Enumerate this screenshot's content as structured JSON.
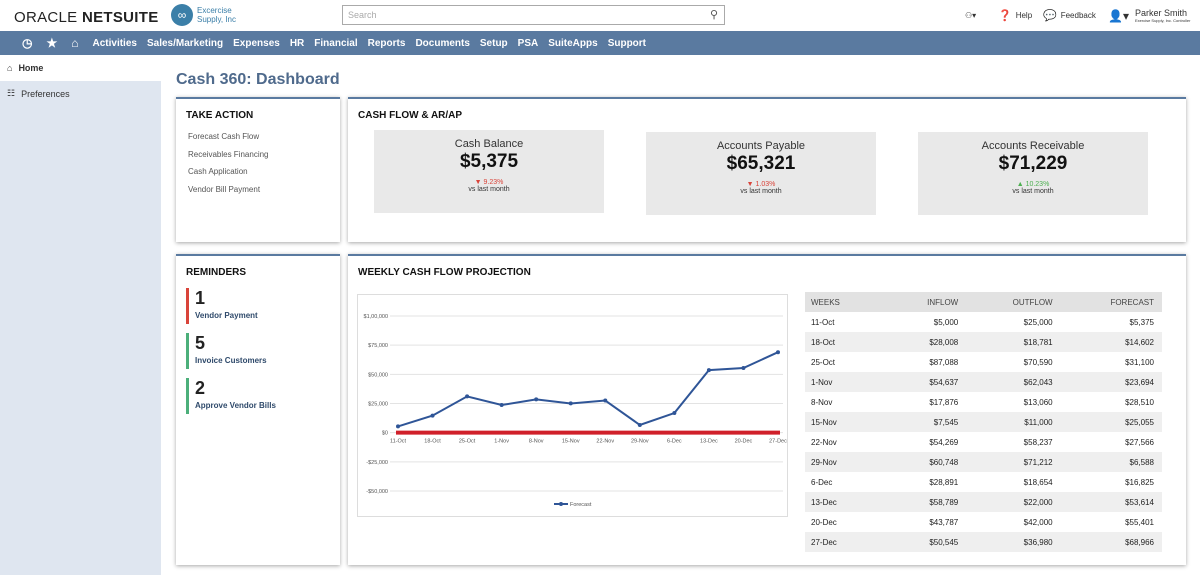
{
  "header": {
    "logo": "ORACLE NETSUITE",
    "company_line1": "Excercise",
    "company_line2": "Supply, Inc",
    "search_placeholder": "Search",
    "help": "Help",
    "feedback": "Feedback",
    "user_name": "Parker Smith",
    "user_role": "Exercise Supply, Inc. Controller"
  },
  "nav": {
    "items": [
      "Activities",
      "Sales/Marketing",
      "Expenses",
      "HR",
      "Financial",
      "Reports",
      "Documents",
      "Setup",
      "PSA",
      "SuiteApps",
      "Support"
    ]
  },
  "sidebar": {
    "items": [
      "Home",
      "Preferences"
    ]
  },
  "page_title": "Cash 360: Dashboard",
  "take_action": {
    "title": "TAKE ACTION",
    "links": [
      "Forecast Cash Flow",
      "Receivables Financing",
      "Cash Application",
      "Vendor Bill Payment"
    ]
  },
  "cash_flow": {
    "title": "CASH FLOW & AR/AP",
    "kpis": [
      {
        "label": "Cash Balance",
        "value": "$5,375",
        "delta": "9.23%",
        "direction": "down",
        "sub": "vs last month"
      },
      {
        "label": "Accounts Payable",
        "value": "$65,321",
        "delta": "1.03%",
        "direction": "down",
        "sub": "vs last month"
      },
      {
        "label": "Accounts Receivable",
        "value": "$71,229",
        "delta": "10.23%",
        "direction": "up",
        "sub": "vs last month"
      }
    ]
  },
  "reminders": {
    "title": "REMINDERS",
    "items": [
      {
        "count": "1",
        "label": "Vendor Payment",
        "color": "#d9443a"
      },
      {
        "count": "5",
        "label": "Invoice Customers",
        "color": "#4caf7a"
      },
      {
        "count": "2",
        "label": "Approve Vendor Bills",
        "color": "#4caf7a"
      }
    ]
  },
  "weekly": {
    "title": "WEEKLY CASH FLOW PROJECTION",
    "columns": [
      "WEEKS",
      "INFLOW",
      "OUTFLOW",
      "FORECAST"
    ],
    "rows": [
      [
        "11-Oct",
        "$5,000",
        "$25,000",
        "$5,375"
      ],
      [
        "18-Oct",
        "$28,008",
        "$18,781",
        "$14,602"
      ],
      [
        "25-Oct",
        "$87,088",
        "$70,590",
        "$31,100"
      ],
      [
        "1-Nov",
        "$54,637",
        "$62,043",
        "$23,694"
      ],
      [
        "8-Nov",
        "$17,876",
        "$13,060",
        "$28,510"
      ],
      [
        "15-Nov",
        "$7,545",
        "$11,000",
        "$25,055"
      ],
      [
        "22-Nov",
        "$54,269",
        "$58,237",
        "$27,566"
      ],
      [
        "29-Nov",
        "$60,748",
        "$71,212",
        "$6,588"
      ],
      [
        "6-Dec",
        "$28,891",
        "$18,654",
        "$16,825"
      ],
      [
        "13-Dec",
        "$58,789",
        "$22,000",
        "$53,614"
      ],
      [
        "20-Dec",
        "$43,787",
        "$42,000",
        "$55,401"
      ],
      [
        "27-Dec",
        "$50,545",
        "$36,980",
        "$68,966"
      ]
    ]
  },
  "chart_data": {
    "type": "line",
    "categories": [
      "11-Oct",
      "18-Oct",
      "25-Oct",
      "1-Nov",
      "8-Nov",
      "15-Nov",
      "22-Nov",
      "29-Nov",
      "6-Dec",
      "13-Dec",
      "20-Dec",
      "27-Dec"
    ],
    "series": [
      {
        "name": "Forecast",
        "values": [
          5375,
          14602,
          31100,
          23694,
          28510,
          25055,
          27566,
          6588,
          16825,
          53614,
          55401,
          68966
        ],
        "color": "#2f5597"
      }
    ],
    "ylim": [
      -50000,
      100000
    ],
    "yticks": [
      "-$50,000",
      "-$25,000",
      "$0",
      "$25,000",
      "$50,000",
      "$75,000",
      "$1,00,000"
    ],
    "zero_line_color": "#d0202a",
    "grid": true,
    "legend": "bottom"
  }
}
